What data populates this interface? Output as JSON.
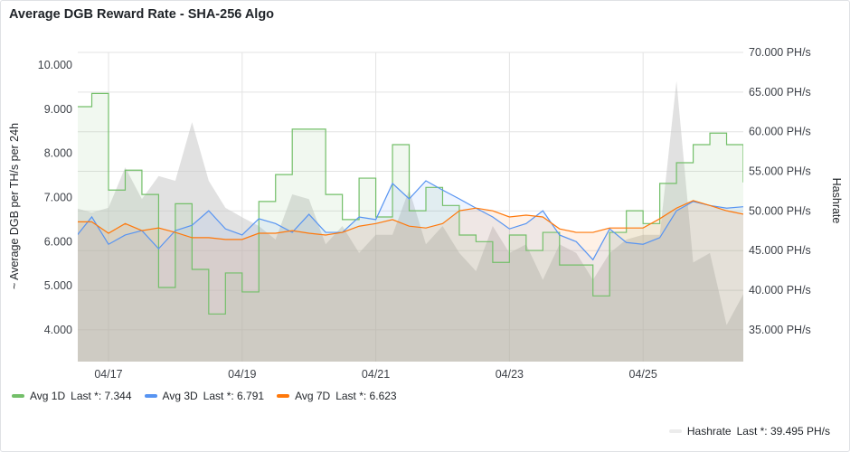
{
  "title": "Average DGB Reward Rate - SHA-256 Algo",
  "colors": {
    "avg1d": "#73bf69",
    "avg3d": "#5794f2",
    "avg7d": "#ff780a",
    "hashrate": "#c8c8c8"
  },
  "legend": [
    {
      "name": "Avg 1D",
      "stat": "Last *: 7.344"
    },
    {
      "name": "Avg 3D",
      "stat": "Last *: 6.791"
    },
    {
      "name": "Avg 7D",
      "stat": "Last *: 6.623"
    },
    {
      "name": "Hashrate",
      "stat": "Last *: 39.495 PH/s"
    }
  ],
  "chart_data": {
    "type": "line",
    "title": "Average DGB Reward Rate - SHA-256 Algo",
    "xlabel": "",
    "ylabel": "~ Average DGB per TH/s per 24h",
    "y2label": "Hashrate",
    "x_unit": "days since 04/16 00:00",
    "x_start": 0.5,
    "x_step": 0.25,
    "xlim": [
      0.54,
      10.5
    ],
    "x_ticks": [
      {
        "value": 1,
        "label": "04/17"
      },
      {
        "value": 3,
        "label": "04/19"
      },
      {
        "value": 5,
        "label": "04/21"
      },
      {
        "value": 7,
        "label": "04/23"
      },
      {
        "value": 9,
        "label": "04/25"
      }
    ],
    "ylim": [
      3.28,
      10.29
    ],
    "y_ticks": [
      "4.000",
      "5.000",
      "6.000",
      "7.000",
      "8.000",
      "9.000",
      "10.000"
    ],
    "y2lim": [
      31.0,
      70.0
    ],
    "y2_ticks": [
      "35.000 PH/s",
      "40.000 PH/s",
      "45.000 PH/s",
      "50.000 PH/s",
      "55.000 PH/s",
      "60.000 PH/s",
      "65.000 PH/s",
      "70.000 PH/s"
    ],
    "grid": true,
    "legend_placement": "bottom",
    "series": [
      {
        "name": "Avg 1D",
        "axis": "left",
        "values": [
          9.06,
          9.36,
          7.17,
          7.62,
          7.07,
          4.96,
          6.86,
          5.37,
          4.36,
          5.29,
          4.86,
          6.91,
          7.52,
          8.55,
          8.55,
          7.07,
          6.5,
          7.44,
          6.56,
          8.2,
          6.7,
          7.23,
          6.82,
          6.15,
          6.0,
          5.53,
          6.15,
          5.8,
          6.21,
          5.47,
          5.47,
          4.77,
          6.21,
          6.7,
          6.41,
          7.32,
          7.79,
          8.2,
          8.46,
          8.2,
          7.344
        ]
      },
      {
        "name": "Avg 3D",
        "axis": "left",
        "values": [
          6.09,
          6.56,
          5.94,
          6.15,
          6.25,
          5.84,
          6.25,
          6.37,
          6.7,
          6.29,
          6.15,
          6.52,
          6.41,
          6.21,
          6.62,
          6.21,
          6.21,
          6.56,
          6.5,
          7.32,
          6.97,
          7.38,
          7.17,
          6.97,
          6.76,
          6.56,
          6.29,
          6.41,
          6.7,
          6.15,
          6.0,
          5.59,
          6.29,
          5.98,
          5.94,
          6.09,
          6.7,
          6.91,
          6.82,
          6.76,
          6.791
        ]
      },
      {
        "name": "Avg 7D",
        "axis": "left",
        "values": [
          6.45,
          6.45,
          6.19,
          6.41,
          6.25,
          6.31,
          6.21,
          6.09,
          6.09,
          6.05,
          6.05,
          6.19,
          6.19,
          6.25,
          6.19,
          6.15,
          6.21,
          6.35,
          6.41,
          6.5,
          6.35,
          6.31,
          6.41,
          6.7,
          6.76,
          6.7,
          6.56,
          6.6,
          6.56,
          6.29,
          6.21,
          6.21,
          6.31,
          6.31,
          6.31,
          6.52,
          6.76,
          6.93,
          6.82,
          6.7,
          6.623
        ]
      },
      {
        "name": "Hashrate",
        "axis": "right",
        "unit": "PH/s",
        "values": [
          50.4,
          49.8,
          50.4,
          55.5,
          51.5,
          54.4,
          53.8,
          61.2,
          53.8,
          50.4,
          49.2,
          48.1,
          46.4,
          52.1,
          51.5,
          45.8,
          48.1,
          44.7,
          47.0,
          47.0,
          52.7,
          45.8,
          48.1,
          44.7,
          42.4,
          48.1,
          44.7,
          45.8,
          41.3,
          45.8,
          44.7,
          41.3,
          44.7,
          46.4,
          47.0,
          47.0,
          66.4,
          43.5,
          44.7,
          35.6,
          39.495
        ]
      }
    ]
  }
}
